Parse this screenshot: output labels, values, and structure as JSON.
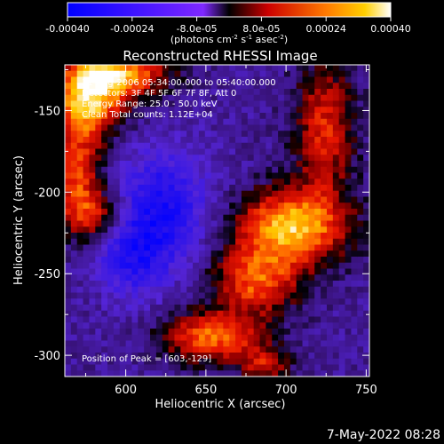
{
  "chart_data": {
    "type": "heatmap",
    "title": "Reconstructed RHESSI Image",
    "xlabel": "Heliocentric X (arcsec)",
    "ylabel": "Heliocentric Y (arcsec)",
    "xlim": [
      562,
      752
    ],
    "ylim": [
      -313,
      -122
    ],
    "x_ticks": [
      600,
      650,
      700,
      750
    ],
    "y_ticks": [
      -150,
      -200,
      -250,
      -300
    ],
    "colorbar": {
      "ticks": [
        -0.0004,
        -0.00024,
        -8e-05,
        8e-05,
        0.00024,
        0.0004
      ],
      "tick_labels": [
        "-0.00040",
        "-0.00024",
        "-8.0e-05",
        "8.0e-05",
        "0.00024",
        "0.00040"
      ],
      "label": "(photons cm",
      "label_parts": [
        "(photons cm",
        "-2",
        " s",
        "-1",
        " asec",
        "-2",
        ")"
      ],
      "range": [
        -0.0004,
        0.0004
      ]
    },
    "annotations": {
      "time": "31-Aug-2006 05:34:00.000 to 05:40:00.000",
      "detectors": "Detectors: 3F 4F 5F 6F 7F 8F, Att 0",
      "energy": "Energy Range: 25.0 - 50.0 keV",
      "clean": "Clean     Total counts: 1.12E+04",
      "peak": "Position of Peak = [603,-129]"
    },
    "peak": [
      603,
      -129
    ]
  },
  "footer": {
    "date": "7-May-2022 08:28"
  }
}
